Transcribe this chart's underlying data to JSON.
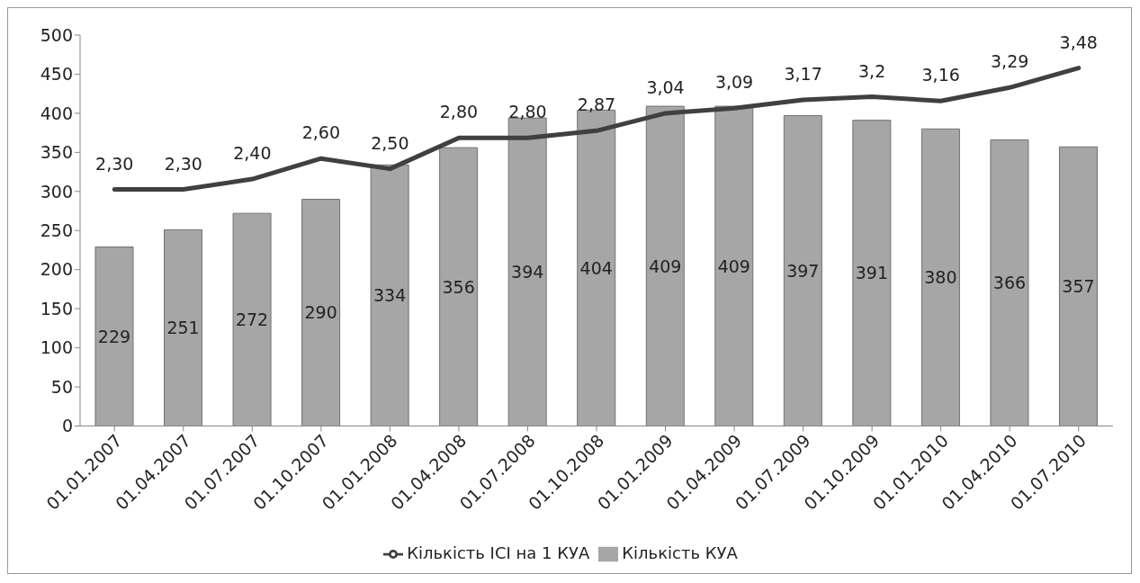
{
  "chart_data": {
    "type": "bar",
    "categories": [
      "01.01.2007",
      "01.04.2007",
      "01.07.2007",
      "01.10.2007",
      "01.01.2008",
      "01.04.2008",
      "01.07.2008",
      "01.10.2008",
      "01.01.2009",
      "01.04.2009",
      "01.07.2009",
      "01.10.2009",
      "01.01.2010",
      "01.04.2010",
      "01.07.2010"
    ],
    "series": [
      {
        "name": "Кількість КУА",
        "color": "#a6a6a6",
        "values": [
          229,
          251,
          272,
          290,
          334,
          356,
          394,
          404,
          409,
          409,
          397,
          391,
          380,
          366,
          357
        ],
        "data_labels": true
      },
      {
        "name": "Кількість ІСІ на 1 КУА",
        "type": "line",
        "axis": "y2",
        "color": "#404040",
        "values": [
          2.3,
          2.3,
          2.4,
          2.6,
          2.5,
          2.8,
          2.8,
          2.87,
          3.04,
          3.09,
          3.17,
          3.2,
          3.16,
          3.29,
          3.48
        ],
        "value_labels": [
          "2,30",
          "2,30",
          "2,40",
          "2,60",
          "2,50",
          "2,80",
          "2,80",
          "2,87",
          "3,04",
          "3,09",
          "3,17",
          "3,2",
          "3,16",
          "3,29",
          "3,48"
        ]
      }
    ],
    "ylim": [
      0,
      500
    ],
    "yticks": [
      0,
      50,
      100,
      150,
      200,
      250,
      300,
      350,
      400,
      450,
      500
    ],
    "y2lim": [
      0,
      3.8
    ],
    "grid": false,
    "legend": "bottom",
    "marker": "none",
    "line_style": "solid"
  }
}
